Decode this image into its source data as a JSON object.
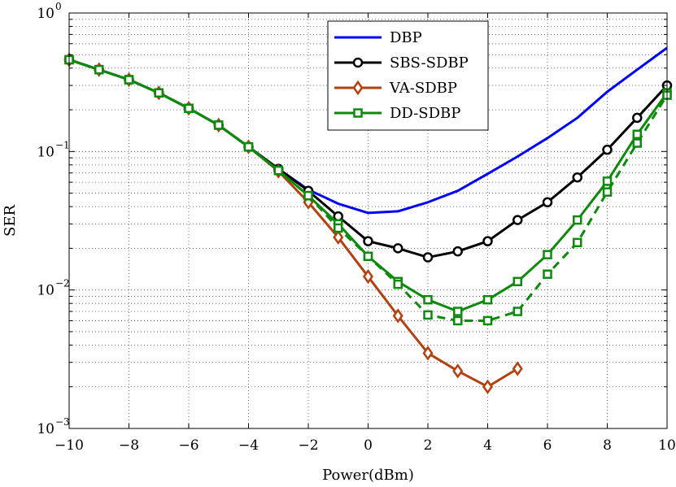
{
  "chart_data": {
    "type": "line",
    "title": "",
    "xlabel": "Power(dBm)",
    "ylabel": "SER",
    "xlim": [
      -10,
      10
    ],
    "ylim": [
      0.001,
      1
    ],
    "yscale": "log",
    "grid": true,
    "legend_position": "top-center",
    "x_ticks": [
      -10,
      -8,
      -6,
      -4,
      -2,
      0,
      2,
      4,
      6,
      8,
      10
    ],
    "x_tick_labels": [
      "−10",
      "−8",
      "−6",
      "−4",
      "−2",
      "0",
      "2",
      "4",
      "6",
      "8",
      "10"
    ],
    "y_ticks": [
      {
        "value": 1,
        "base": "10",
        "exp": "0"
      },
      {
        "value": 0.1,
        "base": "10",
        "exp": "−1"
      },
      {
        "value": 0.01,
        "base": "10",
        "exp": "−2"
      },
      {
        "value": 0.001,
        "base": "10",
        "exp": "−3"
      }
    ],
    "series": [
      {
        "name": "DBP",
        "color": "#0000ff",
        "marker": "none",
        "dash": "solid",
        "in_legend": true,
        "x": [
          -10,
          -9,
          -8,
          -7,
          -6,
          -5,
          -4,
          -3,
          -2,
          -1,
          0,
          1,
          2,
          3,
          4,
          5,
          6,
          7,
          8,
          9,
          10
        ],
        "y": [
          0.46,
          0.39,
          0.33,
          0.265,
          0.205,
          0.155,
          0.108,
          0.075,
          0.053,
          0.042,
          0.036,
          0.037,
          0.043,
          0.052,
          0.069,
          0.092,
          0.125,
          0.175,
          0.27,
          0.39,
          0.56
        ]
      },
      {
        "name": "SBS-SDBP",
        "color": "#000000",
        "marker": "circle",
        "dash": "solid",
        "in_legend": true,
        "x": [
          -10,
          -9,
          -8,
          -7,
          -6,
          -5,
          -4,
          -3,
          -2,
          -1,
          0,
          1,
          2,
          3,
          4,
          5,
          6,
          7,
          8,
          9,
          10
        ],
        "y": [
          0.46,
          0.39,
          0.33,
          0.265,
          0.205,
          0.155,
          0.108,
          0.075,
          0.052,
          0.034,
          0.0225,
          0.02,
          0.0172,
          0.019,
          0.0225,
          0.032,
          0.043,
          0.065,
          0.103,
          0.175,
          0.3
        ]
      },
      {
        "name": "VA-SDBP",
        "color": "#b3400e",
        "marker": "diamond",
        "dash": "solid",
        "in_legend": true,
        "x": [
          -10,
          -9,
          -8,
          -7,
          -6,
          -5,
          -4,
          -3,
          -2,
          -1,
          0,
          1,
          2,
          3,
          4,
          5
        ],
        "y": [
          0.46,
          0.39,
          0.33,
          0.265,
          0.205,
          0.155,
          0.108,
          0.072,
          0.043,
          0.024,
          0.0125,
          0.0065,
          0.0035,
          0.0026,
          0.002,
          0.0027
        ]
      },
      {
        "name": "DD-SDBP",
        "color": "#0b8a0b",
        "marker": "square",
        "dash": "solid",
        "in_legend": true,
        "x": [
          -10,
          -9,
          -8,
          -7,
          -6,
          -5,
          -4,
          -3,
          -2,
          -1,
          0,
          1,
          2,
          3,
          4,
          5,
          6,
          7,
          8,
          9,
          10
        ],
        "y": [
          0.46,
          0.39,
          0.33,
          0.265,
          0.205,
          0.155,
          0.108,
          0.073,
          0.048,
          0.03,
          0.0175,
          0.0115,
          0.0085,
          0.007,
          0.0085,
          0.0115,
          0.018,
          0.032,
          0.061,
          0.133,
          0.265
        ]
      },
      {
        "name": "DD-SDBP (dashed)",
        "color": "#0b8a0b",
        "marker": "square",
        "dash": "dashed",
        "in_legend": false,
        "x": [
          -10,
          -9,
          -8,
          -7,
          -6,
          -5,
          -4,
          -3,
          -2,
          -1,
          0,
          1,
          2,
          3,
          4,
          5,
          6,
          7,
          8,
          9,
          10
        ],
        "y": [
          0.46,
          0.39,
          0.33,
          0.265,
          0.205,
          0.155,
          0.108,
          0.073,
          0.048,
          0.028,
          0.0175,
          0.011,
          0.0066,
          0.006,
          0.006,
          0.007,
          0.013,
          0.022,
          0.051,
          0.115,
          0.255
        ]
      }
    ]
  }
}
